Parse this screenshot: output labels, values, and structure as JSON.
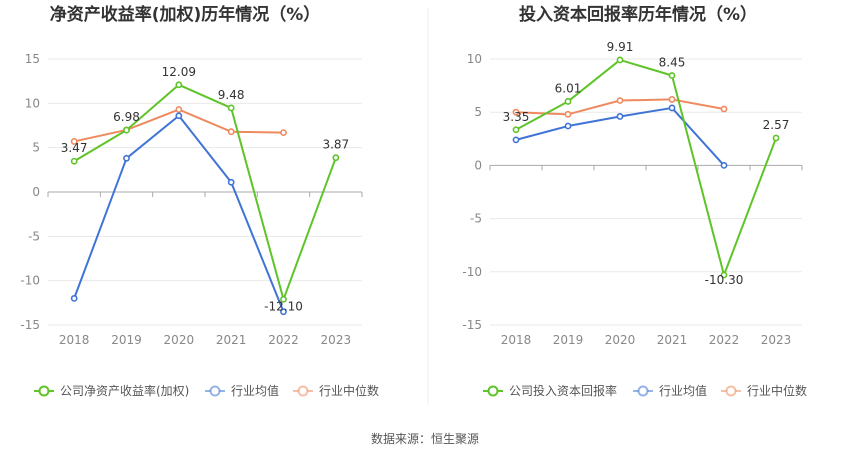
{
  "source_text": "数据来源：恒生聚源",
  "colors": {
    "company": "#5ec427",
    "average": "#3f74d6",
    "median": "#ee8a5e",
    "grid": "#e8e8e8",
    "axis": "#aaaaaa"
  },
  "chart_data": [
    {
      "type": "line",
      "title": "净资产收益率(加权)历年情况（%）",
      "categories": [
        "2018",
        "2019",
        "2020",
        "2021",
        "2022",
        "2023"
      ],
      "ylim": [
        -15,
        15
      ],
      "yticks": [
        -15,
        -10,
        -5,
        0,
        5,
        10,
        15
      ],
      "grid": true,
      "legend_position": "bottom-left",
      "series": [
        {
          "name": "公司净资产收益率(加权)",
          "key": "company",
          "values": [
            3.47,
            6.98,
            12.09,
            9.48,
            -12.1,
            3.87
          ],
          "labels": [
            "3.47",
            "6.98",
            "12.09",
            "9.48",
            "-12.10",
            "3.87"
          ]
        },
        {
          "name": "行业均值",
          "key": "average",
          "values": [
            -12.0,
            3.8,
            8.6,
            1.1,
            -13.5,
            null
          ]
        },
        {
          "name": "行业中位数",
          "key": "median",
          "values": [
            5.7,
            7.0,
            9.3,
            6.8,
            6.7,
            null
          ]
        }
      ]
    },
    {
      "type": "line",
      "title": "投入资本回报率历年情况（%）",
      "categories": [
        "2018",
        "2019",
        "2020",
        "2021",
        "2022",
        "2023"
      ],
      "ylim": [
        -15,
        10
      ],
      "yticks": [
        -15,
        -10,
        -5,
        0,
        5,
        10
      ],
      "grid": true,
      "legend_position": "bottom-left",
      "series": [
        {
          "name": "公司投入资本回报率",
          "key": "company",
          "values": [
            3.35,
            6.01,
            9.91,
            8.45,
            -10.3,
            2.57
          ],
          "labels": [
            "3.35",
            "6.01",
            "9.91",
            "8.45",
            "-10.30",
            "2.57"
          ]
        },
        {
          "name": "行业均值",
          "key": "average",
          "values": [
            2.4,
            3.7,
            4.6,
            5.4,
            0.0,
            null
          ]
        },
        {
          "name": "行业中位数",
          "key": "median",
          "values": [
            5.0,
            4.8,
            6.1,
            6.2,
            5.3,
            null
          ]
        }
      ]
    }
  ]
}
